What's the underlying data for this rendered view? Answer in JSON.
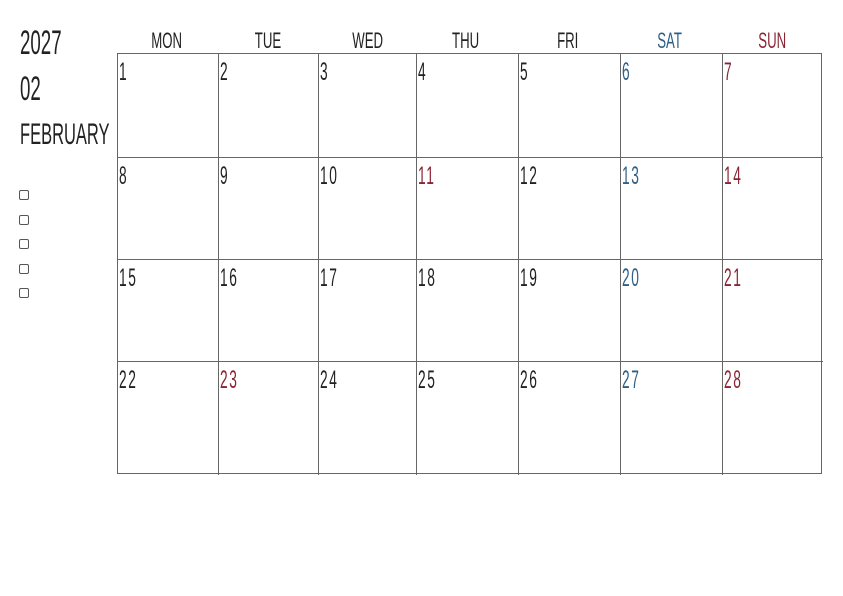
{
  "header": {
    "year": "2027",
    "month_number": "02",
    "month_name": "FEBRUARY"
  },
  "checkbox_count": 5,
  "colors": {
    "text": "#222222",
    "saturday": "#2f5f85",
    "sunday_holiday": "#8a2433"
  },
  "weekdays": [
    {
      "label": "MON",
      "type": "weekday"
    },
    {
      "label": "TUE",
      "type": "weekday"
    },
    {
      "label": "WED",
      "type": "weekday"
    },
    {
      "label": "THU",
      "type": "weekday"
    },
    {
      "label": "FRI",
      "type": "weekday"
    },
    {
      "label": "SAT",
      "type": "sat"
    },
    {
      "label": "SUN",
      "type": "sun"
    }
  ],
  "days": [
    {
      "d": "1",
      "t": ""
    },
    {
      "d": "2",
      "t": ""
    },
    {
      "d": "3",
      "t": ""
    },
    {
      "d": "4",
      "t": ""
    },
    {
      "d": "5",
      "t": ""
    },
    {
      "d": "6",
      "t": "sat"
    },
    {
      "d": "7",
      "t": "sun"
    },
    {
      "d": "8",
      "t": ""
    },
    {
      "d": "9",
      "t": ""
    },
    {
      "d": "10",
      "t": ""
    },
    {
      "d": "11",
      "t": "sun"
    },
    {
      "d": "12",
      "t": ""
    },
    {
      "d": "13",
      "t": "sat"
    },
    {
      "d": "14",
      "t": "sun"
    },
    {
      "d": "15",
      "t": ""
    },
    {
      "d": "16",
      "t": ""
    },
    {
      "d": "17",
      "t": ""
    },
    {
      "d": "18",
      "t": ""
    },
    {
      "d": "19",
      "t": ""
    },
    {
      "d": "20",
      "t": "sat"
    },
    {
      "d": "21",
      "t": "sun"
    },
    {
      "d": "22",
      "t": ""
    },
    {
      "d": "23",
      "t": "sun"
    },
    {
      "d": "24",
      "t": ""
    },
    {
      "d": "25",
      "t": ""
    },
    {
      "d": "26",
      "t": ""
    },
    {
      "d": "27",
      "t": "sat"
    },
    {
      "d": "28",
      "t": "sun"
    }
  ]
}
